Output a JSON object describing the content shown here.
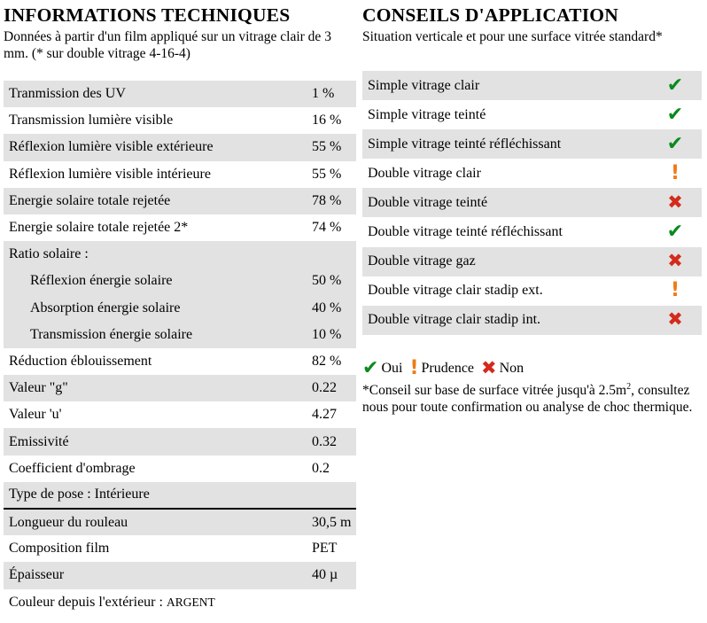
{
  "left": {
    "title": "INFORMATIONS TECHNIQUES",
    "intro": "Données à partir d'un film appliqué sur un vitrage clair de 3 mm. (* sur double vitrage 4-16-4)",
    "rows": [
      {
        "label": "Tranmission des UV",
        "value": "1 %"
      },
      {
        "label": "Transmission lumière visible",
        "value": "16 %"
      },
      {
        "label": "Réflexion lumière visible extérieure",
        "value": "55 %"
      },
      {
        "label": "Réflexion lumière visible intérieure",
        "value": "55 %"
      },
      {
        "label": "Energie solaire totale rejetée",
        "value": "78 %"
      },
      {
        "label": "Energie solaire totale rejetée 2*",
        "value": "74 %"
      },
      {
        "label": "Ratio solaire :",
        "value": ""
      },
      {
        "label": "Réflexion énergie solaire",
        "value": "50 %"
      },
      {
        "label": "Absorption énergie solaire",
        "value": "40 %"
      },
      {
        "label": "Transmission énergie solaire",
        "value": "10 %"
      },
      {
        "label": "Réduction éblouissement",
        "value": "82 %"
      },
      {
        "label": "Valeur \"g\"",
        "value": "0.22"
      },
      {
        "label": "Valeur 'u'",
        "value": "4.27"
      },
      {
        "label": "Emissivité",
        "value": "0.32"
      },
      {
        "label": "Coefficient d'ombrage",
        "value": "0.2"
      },
      {
        "label": "Type de pose : Intérieure",
        "value": ""
      },
      {
        "label": "Longueur du rouleau",
        "value": "30,5 m"
      },
      {
        "label": "Composition film",
        "value": "PET"
      },
      {
        "label": "Épaisseur",
        "value": "40 µ"
      }
    ],
    "color_label": "Couleur depuis l'extérieur : ",
    "color_value": "ARGENT"
  },
  "right": {
    "title": "CONSEILS D'APPLICATION",
    "intro": "Situation verticale et pour une surface vitrée standard*",
    "rows": [
      {
        "label": "Simple vitrage clair",
        "status": "oui"
      },
      {
        "label": "Simple vitrage teinté",
        "status": "oui"
      },
      {
        "label": "Simple vitrage teinté réfléchissant",
        "status": "oui"
      },
      {
        "label": "Double vitrage clair",
        "status": "prudence"
      },
      {
        "label": "Double vitrage teinté",
        "status": "non"
      },
      {
        "label": "Double vitrage teinté réfléchissant",
        "status": "oui"
      },
      {
        "label": "Double vitrage gaz",
        "status": "non"
      },
      {
        "label": "Double vitrage clair stadip ext.",
        "status": "prudence"
      },
      {
        "label": "Double vitrage clair stadip int.",
        "status": "non"
      }
    ],
    "legend": {
      "oui": "Oui",
      "prudence": "Prudence",
      "non": "Non"
    },
    "note_before": "*Conseil sur base de surface vitrée jusqu'à 2.5m",
    "note_sup": "2",
    "note_after": ", consultez nous pour toute confirmation ou analyse de choc thermique.",
    "colors": {
      "oui": "#0a8a1e",
      "prudence": "#f07a14",
      "non": "#d42a1c"
    },
    "icons": {
      "oui": "check-icon",
      "prudence": "exclamation-icon",
      "non": "cross-icon"
    }
  }
}
